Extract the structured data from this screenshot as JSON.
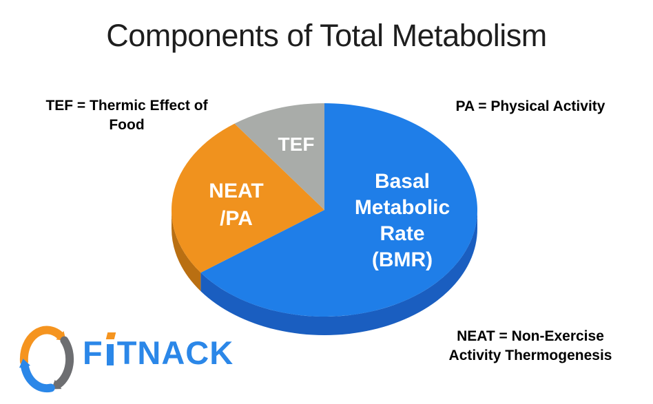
{
  "title": "Components of Total Metabolism",
  "title_color": "#1e1e1e",
  "annotations": {
    "tef": "TEF = Thermic Effect of\nFood",
    "pa": "PA = Physical Activity",
    "neat": "NEAT = Non-Exercise\nActivity Thermogenesis"
  },
  "chart_data": {
    "type": "pie",
    "title": "Components of Total Metabolism",
    "effect": "3d",
    "start_angle_deg": -90,
    "direction": "clockwise",
    "values_shown": false,
    "legend_position": "none",
    "slices": [
      {
        "key": "bmr",
        "name": "Basal Metabolic Rate (BMR)",
        "label": "Basal\nMetabolic\nRate\n(BMR)",
        "value": 65,
        "color": "#1f7ee8",
        "side_color": "#1a5ec0",
        "label_color": "#ffffff"
      },
      {
        "key": "neat-pa",
        "name": "NEAT/PA",
        "label": "NEAT\n/PA",
        "value": 25,
        "color": "#f0921e",
        "side_color": "#b96f12",
        "label_color": "#ffffff"
      },
      {
        "key": "tef",
        "name": "TEF",
        "label": "TEF",
        "value": 10,
        "color": "#a9aca9",
        "side_color": "#8b8e8b",
        "label_color": "#ffffff"
      }
    ]
  },
  "logo": {
    "text": "FITNACK",
    "text_f": "F",
    "text_rest": "TNACK",
    "colors": {
      "blue": "#2b87e8",
      "orange": "#f5941f",
      "gray": "#6d6e71"
    }
  }
}
